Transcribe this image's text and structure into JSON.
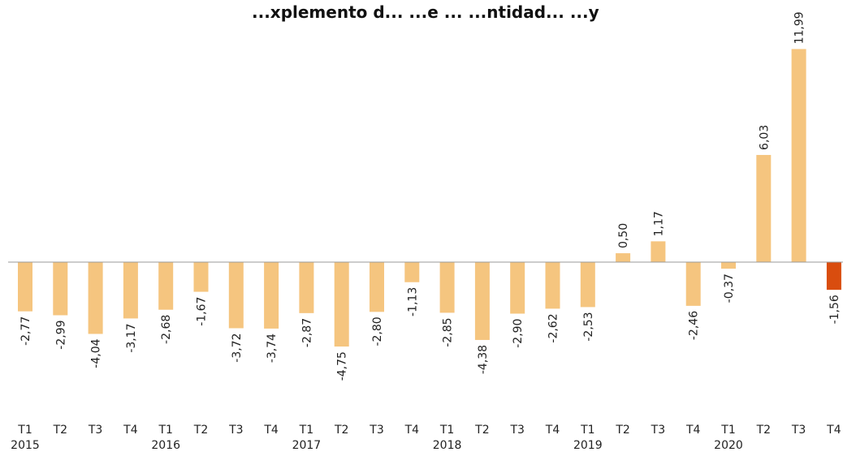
{
  "title": "...xplemento d... ...e ... ...ntidad... ...y",
  "chart_data": {
    "type": "bar",
    "title": "",
    "xlabel": "",
    "ylabel": "",
    "categories": [
      "T1",
      "T2",
      "T3",
      "T4",
      "T1",
      "T2",
      "T3",
      "T4",
      "T1",
      "T2",
      "T3",
      "T4",
      "T1",
      "T2",
      "T3",
      "T4",
      "T1",
      "T2",
      "T3",
      "T4",
      "T1",
      "T2",
      "T3",
      "T4"
    ],
    "years": [
      {
        "label": "2015",
        "start_index": 0
      },
      {
        "label": "2016",
        "start_index": 4
      },
      {
        "label": "2017",
        "start_index": 8
      },
      {
        "label": "2018",
        "start_index": 12
      },
      {
        "label": "2019",
        "start_index": 16
      },
      {
        "label": "2020",
        "start_index": 20
      }
    ],
    "values": [
      -2.77,
      -2.99,
      -4.04,
      -3.17,
      -2.68,
      -1.67,
      -3.72,
      -3.74,
      -2.87,
      -4.75,
      -2.8,
      -1.13,
      -2.85,
      -4.38,
      -2.9,
      -2.62,
      -2.53,
      0.5,
      1.17,
      -2.46,
      -0.37,
      6.03,
      11.99,
      -1.56
    ],
    "value_labels": [
      "-2,77",
      "-2,99",
      "-4,04",
      "-3,17",
      "-2,68",
      "-1,67",
      "-3,72",
      "-3,74",
      "-2,87",
      "-4,75",
      "-2,80",
      "-1,13",
      "-2,85",
      "-4,38",
      "-2,90",
      "-2,62",
      "-2,53",
      "0,50",
      "1,17",
      "-2,46",
      "-0,37",
      "6,03",
      "11,99",
      "-1,56"
    ],
    "highlight_index": 23,
    "colors": {
      "bar": "#f5c57f",
      "highlight": "#d94d0f",
      "zero_line": "#999999"
    },
    "grid": false,
    "legend": "none"
  }
}
